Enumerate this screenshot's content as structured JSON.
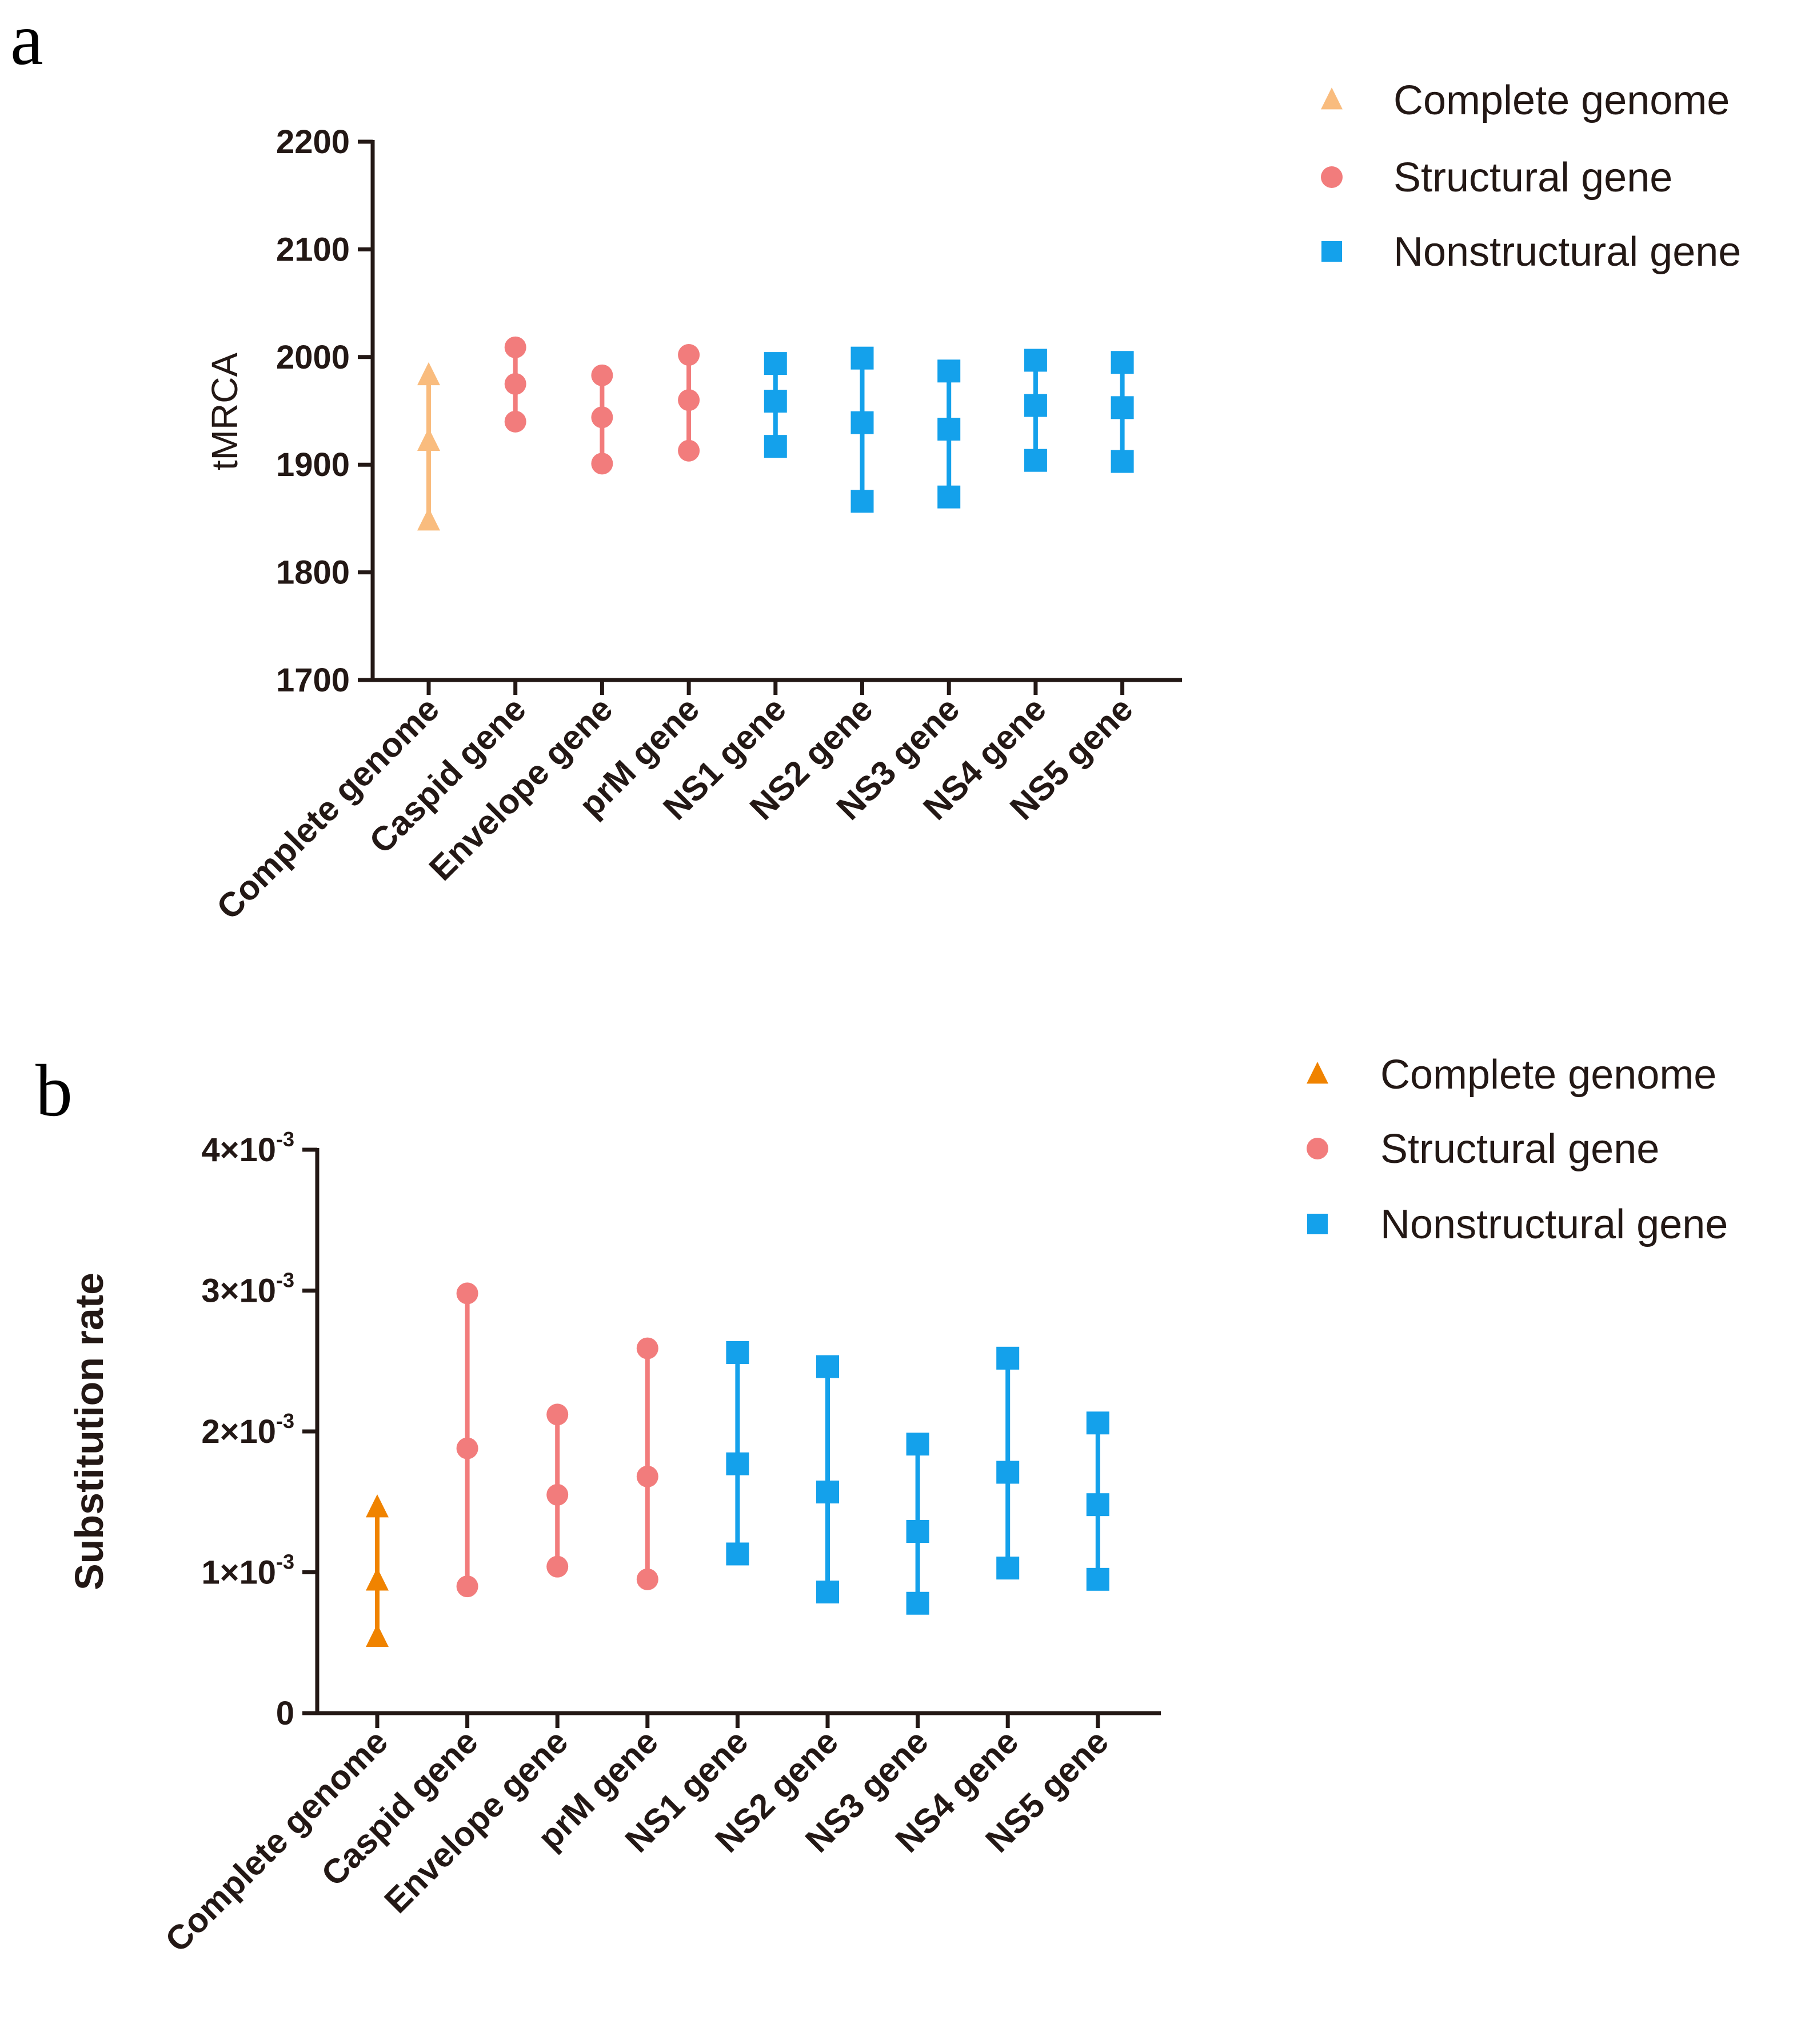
{
  "chart_data": [
    {
      "panel": "a",
      "type": "scatter",
      "title": "",
      "xlabel": "",
      "ylabel": "tMRCA",
      "ylim": [
        1700,
        2200
      ],
      "yticks": [
        1700,
        1800,
        1900,
        2000,
        2100,
        2200
      ],
      "ytick_labels": [
        "1700",
        "1800",
        "1900",
        "2000",
        "2100",
        "2200"
      ],
      "categories": [
        "Complete genome",
        "Caspid gene",
        "Envelope gene",
        "prM gene",
        "NS1 gene",
        "NS2 gene",
        "NS3 gene",
        "NS4 gene",
        "NS5 gene"
      ],
      "groups": [
        "Complete genome",
        "Structural gene",
        "Structural gene",
        "Structural gene",
        "Nonstructural gene",
        "Nonstructural gene",
        "Nonstructural gene",
        "Nonstructural gene",
        "Nonstructural gene"
      ],
      "series": [
        {
          "name": "upper",
          "values": [
            1983,
            2009,
            1983,
            2002,
            1994,
            1999,
            1987,
            1997,
            1995
          ]
        },
        {
          "name": "mean",
          "values": [
            1922,
            1975,
            1944,
            1960,
            1959,
            1939,
            1933,
            1955,
            1953
          ]
        },
        {
          "name": "lower",
          "values": [
            1848,
            1940,
            1901,
            1913,
            1917,
            1866,
            1870,
            1904,
            1903
          ]
        }
      ],
      "legend": {
        "position": "top-right",
        "entries": [
          {
            "label": "Complete genome",
            "marker": "triangle",
            "color": "#F9BC7E"
          },
          {
            "label": "Structural gene",
            "marker": "circle",
            "color": "#F27C7C"
          },
          {
            "label": "Nonstructural gene",
            "marker": "square",
            "color": "#14A1EB"
          }
        ]
      },
      "colors": {
        "Complete genome": "#F9BC7E",
        "Structural gene": "#F27C7C",
        "Nonstructural gene": "#14A1EB"
      }
    },
    {
      "panel": "b",
      "type": "scatter",
      "title": "",
      "xlabel": "",
      "ylabel": "Substitution rate",
      "ylim": [
        0,
        0.004
      ],
      "yticks": [
        0,
        0.001,
        0.002,
        0.003,
        0.004
      ],
      "ytick_labels": [
        {
          "mantissa": "0",
          "exp": ""
        },
        {
          "mantissa": "1×10",
          "exp": "-3"
        },
        {
          "mantissa": "2×10",
          "exp": "-3"
        },
        {
          "mantissa": "3×10",
          "exp": "-3"
        },
        {
          "mantissa": "4×10",
          "exp": "-3"
        }
      ],
      "categories": [
        "Complete genome",
        "Caspid gene",
        "Envelope gene",
        "prM gene",
        "NS1 gene",
        "NS2 gene",
        "NS3 gene",
        "NS4 gene",
        "NS5 gene"
      ],
      "groups": [
        "Complete genome",
        "Structural gene",
        "Structural gene",
        "Structural gene",
        "Nonstructural gene",
        "Nonstructural gene",
        "Nonstructural gene",
        "Nonstructural gene",
        "Nonstructural gene"
      ],
      "series": [
        {
          "name": "upper",
          "values": [
            0.00146,
            0.00298,
            0.00212,
            0.00259,
            0.00256,
            0.00246,
            0.00191,
            0.00252,
            0.00206
          ]
        },
        {
          "name": "mean",
          "values": [
            0.00094,
            0.00188,
            0.00155,
            0.00168,
            0.00177,
            0.00157,
            0.00129,
            0.00171,
            0.00148
          ]
        },
        {
          "name": "lower",
          "values": [
            0.00054,
            0.0009,
            0.00104,
            0.00095,
            0.00113,
            0.00086,
            0.00078,
            0.00103,
            0.00095
          ]
        }
      ],
      "legend": {
        "position": "top-right",
        "entries": [
          {
            "label": "Complete genome",
            "marker": "triangle",
            "color": "#F08300"
          },
          {
            "label": "Structural gene",
            "marker": "circle",
            "color": "#F27C7C"
          },
          {
            "label": "Nonstructural gene",
            "marker": "square",
            "color": "#14A1EB"
          }
        ]
      },
      "colors": {
        "Complete genome": "#F08300",
        "Structural gene": "#F27C7C",
        "Nonstructural gene": "#14A1EB"
      }
    }
  ]
}
